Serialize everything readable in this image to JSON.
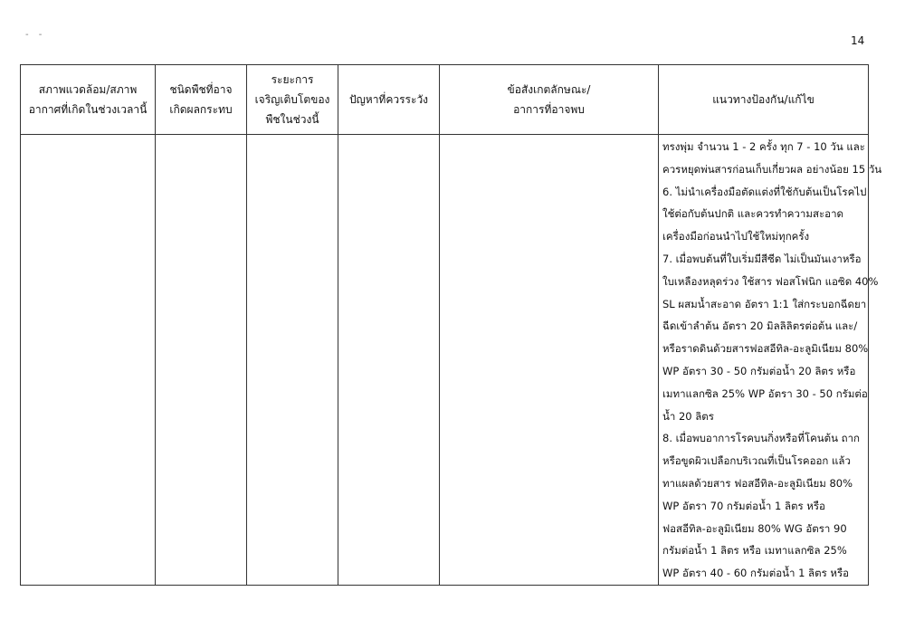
{
  "page_number": "14",
  "corner_marks": "- -",
  "table": {
    "headers": [
      [
        "สภาพแวดล้อม/สภาพ",
        "อากาศที่เกิดในช่วงเวลานี้"
      ],
      [
        "ชนิดพืชที่อาจ",
        "เกิดผลกระทบ"
      ],
      [
        "ระยะการ",
        "เจริญเติบโตของ",
        "พืชในช่วงนี้"
      ],
      [
        "ปัญหาที่ควรระวัง"
      ],
      [
        "ข้อสังเกตลักษณะ/",
        "อาการที่อาจพบ"
      ],
      [
        "แนวทางป้องกัน/แก้ไข"
      ]
    ],
    "prevention_lines": [
      "ทรงพุ่ม จำนวน 1 - 2 ครั้ง ทุก 7 - 10 วัน และ",
      "ควรหยุดพ่นสารก่อนเก็บเกี่ยวผล อย่างน้อย 15 วัน",
      "6. ไม่นำเครื่องมือตัดแต่งที่ใช้กับต้นเป็นโรคไป",
      "ใช้ต่อกับต้นปกติ และควรทำความสะอาด",
      "เครื่องมือก่อนนำไปใช้ใหม่ทุกครั้ง",
      "7. เมื่อพบต้นที่ใบเริ่มมีสีซีด ไม่เป็นมันเงาหรือ",
      "ใบเหลืองหลุดร่วง ใช้สาร ฟอสโฟนิก แอซิด 40%",
      "SL ผสมน้ำสะอาด อัตรา 1:1 ใส่กระบอกฉีดยา",
      "ฉีดเข้าลำต้น อัตรา 20 มิลลิลิตรต่อต้น และ/",
      "หรือราดดินด้วยสารฟอสอีทิล-อะลูมิเนียม 80%",
      "WP อัตรา 30 - 50 กรัมต่อน้ำ 20 ลิตร หรือ",
      "เมทาแลกซิล 25% WP อัตรา 30 - 50 กรัมต่อ",
      "น้ำ 20 ลิตร",
      "8. เมื่อพบอาการโรคบนกิ่งหรือที่โคนต้น ถาก",
      "หรือขูดผิวเปลือกบริเวณที่เป็นโรคออก แล้ว",
      "ทาแผลด้วยสาร ฟอสอีทิล-อะลูมิเนียม 80%",
      "WP อัตรา 70 กรัมต่อน้ำ 1 ลิตร หรือ",
      "ฟอสอีทิล-อะลูมิเนียม 80% WG อัตรา 90",
      "กรัมต่อน้ำ 1 ลิตร หรือ เมทาแลกซิล 25%",
      "WP อัตรา 40 - 60 กรัมต่อน้ำ 1 ลิตร หรือ"
    ]
  }
}
